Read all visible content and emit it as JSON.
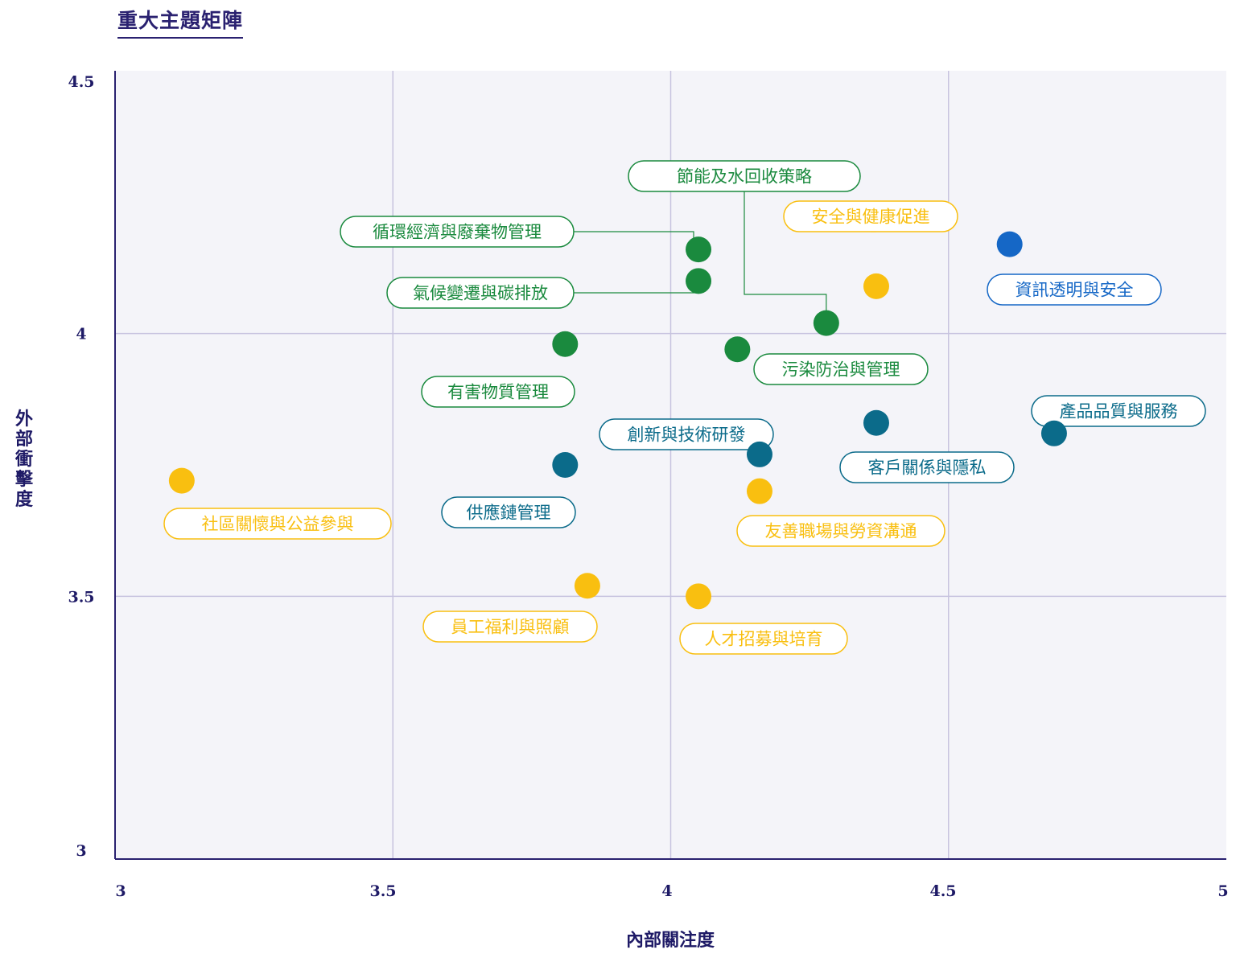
{
  "title": "重大主題矩陣",
  "colors": {
    "plot_bg": "#f4f4f9",
    "grid": "#c7c3df",
    "axis": "#2a2170",
    "environment": "#1a8a3e",
    "social": "#f9bf10",
    "governance": "#0b6b8a",
    "information": "#1567c6"
  },
  "chart_data": {
    "type": "scatter",
    "title": "重大主題矩陣",
    "xlabel": "內部關注度",
    "ylabel": "外部衝擊度",
    "xlim": [
      3,
      5
    ],
    "ylim": [
      3,
      4.5
    ],
    "x_ticks": [
      "3",
      "3.5",
      "4",
      "4.5",
      "5"
    ],
    "y_ticks": [
      "3",
      "3.5",
      "4",
      "4.5"
    ],
    "grid": true,
    "points": [
      {
        "label": "節能及水回收策略",
        "x": 4.28,
        "y": 4.02,
        "group": "environment"
      },
      {
        "label": "循環經濟與廢棄物管理",
        "x": 4.05,
        "y": 4.16,
        "group": "environment"
      },
      {
        "label": "氣候變遷與碳排放",
        "x": 4.05,
        "y": 4.1,
        "group": "environment"
      },
      {
        "label": "有害物質管理",
        "x": 3.81,
        "y": 3.98,
        "group": "environment"
      },
      {
        "label": "污染防治與管理",
        "x": 4.12,
        "y": 3.97,
        "group": "environment"
      },
      {
        "label": "安全與健康促進",
        "x": 4.37,
        "y": 4.09,
        "group": "social"
      },
      {
        "label": "資訊透明與安全",
        "x": 4.61,
        "y": 4.17,
        "group": "information"
      },
      {
        "label": "產品品質與服務",
        "x": 4.69,
        "y": 3.81,
        "group": "governance"
      },
      {
        "label": "客戶關係與隱私",
        "x": 4.37,
        "y": 3.83,
        "group": "governance"
      },
      {
        "label": "創新與技術研發",
        "x": 4.16,
        "y": 3.77,
        "group": "governance"
      },
      {
        "label": "供應鏈管理",
        "x": 3.81,
        "y": 3.75,
        "group": "governance"
      },
      {
        "label": "友善職場與勞資溝通",
        "x": 4.16,
        "y": 3.7,
        "group": "social"
      },
      {
        "label": "社區關懷與公益參與",
        "x": 3.12,
        "y": 3.72,
        "group": "social"
      },
      {
        "label": "員工福利與照顧",
        "x": 3.85,
        "y": 3.52,
        "group": "social"
      },
      {
        "label": "人才招募與培育",
        "x": 4.05,
        "y": 3.5,
        "group": "social"
      }
    ]
  }
}
